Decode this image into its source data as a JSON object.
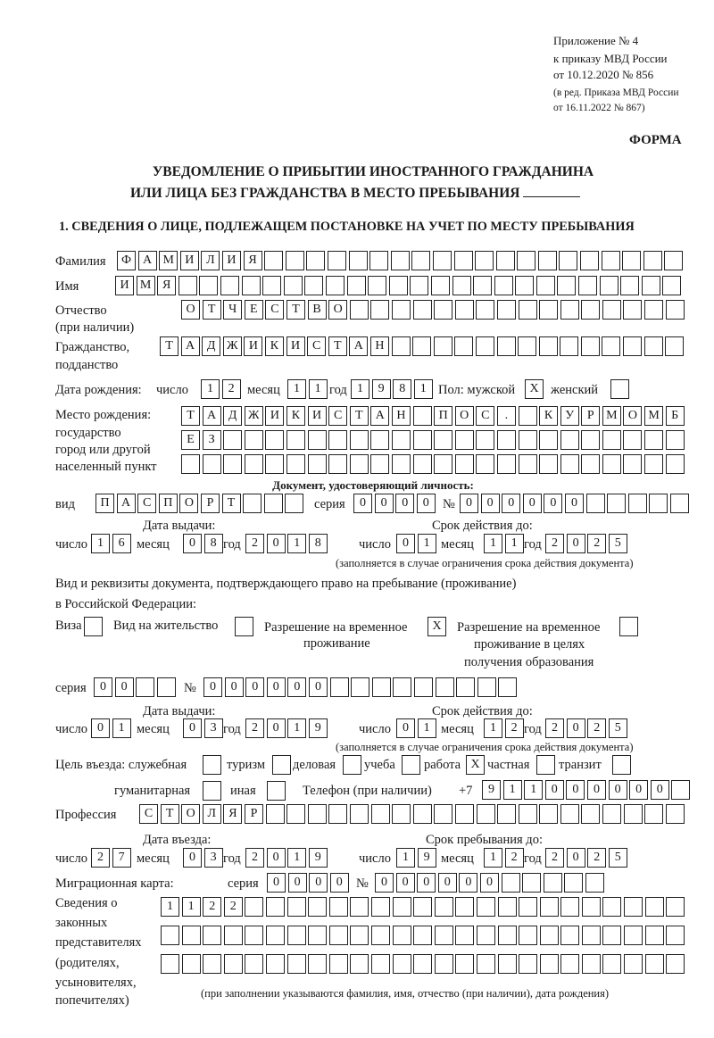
{
  "header": {
    "appendix": "Приложение № 4",
    "order": "к приказу МВД России",
    "order_date": "от 10.12.2020 № 856",
    "edition1": "(в ред. Приказа МВД России",
    "edition2": "от 16.11.2022 № 867)",
    "form": "ФОРМА",
    "title1": "УВЕДОМЛЕНИЕ О ПРИБЫТИИ ИНОСТРАННОГО ГРАЖДАНИНА",
    "title2": "ИЛИ ЛИЦА БЕЗ ГРАЖДАНСТВА В МЕСТО ПРЕБЫВАНИЯ",
    "section1": "1. СВЕДЕНИЯ О ЛИЦЕ, ПОДЛЕЖАЩЕМ ПОСТАНОВКЕ НА УЧЕТ ПО МЕСТУ ПРЕБЫВАНИЯ"
  },
  "labels": {
    "surname": "Фамилия",
    "name": "Имя",
    "patronymic": "Отчество",
    "patronymic_note": "(при наличии)",
    "citizenship": "Гражданство,",
    "citizenship2": "подданство",
    "birth_date": "Дата рождения:",
    "day": "число",
    "month": "месяц",
    "year": "год",
    "sex": "Пол: мужской",
    "female": "женский",
    "birth_place": "Место рождения:",
    "birth_place2": "государство",
    "birth_place3": "город или другой",
    "birth_place4": "населенный пункт",
    "id_doc": "Документ, удостоверяющий личность:",
    "kind": "вид",
    "series": "серия",
    "number": "№",
    "issue_date": "Дата выдачи:",
    "valid_until": "Срок действия до:",
    "valid_note": "(заполняется в случае ограничения срока действия документа)",
    "right_doc1": "Вид и реквизиты документа, подтверждающего право на пребывание (проживание)",
    "right_doc2": "в Российской Федерации:",
    "visa": "Виза",
    "residence": "Вид на жительство",
    "trp": "Разрешение на временное",
    "trp2": "проживание",
    "trp_edu": "Разрешение на временное",
    "trp_edu2": "проживание в целях",
    "trp_edu3": "получения образования",
    "purpose": "Цель въезда: служебная",
    "tourism": "туризм",
    "business": "деловая",
    "study": "учеба",
    "work": "работа",
    "private": "частная",
    "transit": "транзит",
    "humanitarian": "гуманитарная",
    "other": "иная",
    "phone": "Телефон (при наличии)",
    "phone_prefix": "+7",
    "profession": "Профессия",
    "entry_date": "Дата въезда:",
    "stay_until": "Срок пребывания до:",
    "migration_card": "Миграционная карта:",
    "reps": [
      "Сведения о",
      "законных",
      "представителях",
      "(родителях,",
      "усыновителях,",
      "попечителях)"
    ],
    "reps_note": "(при заполнении указываются фамилия, имя, отчество (при наличии), дата рождения)"
  },
  "person": {
    "surname": "ФАМИЛИЯ",
    "name": "ИМЯ",
    "patronymic": "ОТЧЕСТВО",
    "citizenship": "ТАДЖИКИСТАН",
    "birth_day": "12",
    "birth_month": "11",
    "birth_year": "1981",
    "sex_male": "X",
    "sex_female": "",
    "birth_place1": "ТАДЖИКИСТАН ПОС. КУРМОМБ",
    "birth_place2": "ЕЗ",
    "birth_place3": ""
  },
  "id_document": {
    "kind": "ПАСПОРТ",
    "series": "0000",
    "number": "000000",
    "issue_day": "16",
    "issue_month": "08",
    "issue_year": "2018",
    "valid_day": "01",
    "valid_month": "11",
    "valid_year": "2025"
  },
  "right_document": {
    "visa": "",
    "residence": "",
    "trp": "X",
    "trp_edu": "",
    "series": "00",
    "number": "000000",
    "issue_day": "01",
    "issue_month": "03",
    "issue_year": "2019",
    "valid_day": "01",
    "valid_month": "12",
    "valid_year": "2025"
  },
  "purpose": {
    "official": "",
    "tourism": "",
    "business": "",
    "study": "",
    "work": "X",
    "private": "",
    "transit": "",
    "humanitarian": "",
    "other": ""
  },
  "phone": "911000000",
  "profession": "СТОЛЯР",
  "entry": {
    "entry_day": "27",
    "entry_month": "03",
    "entry_year": "2019",
    "stay_day": "19",
    "stay_month": "12",
    "stay_year": "2025"
  },
  "migration_card": {
    "series": "0000",
    "number": "000000"
  },
  "representatives": {
    "line1": "1122",
    "line2": "",
    "line3": ""
  }
}
